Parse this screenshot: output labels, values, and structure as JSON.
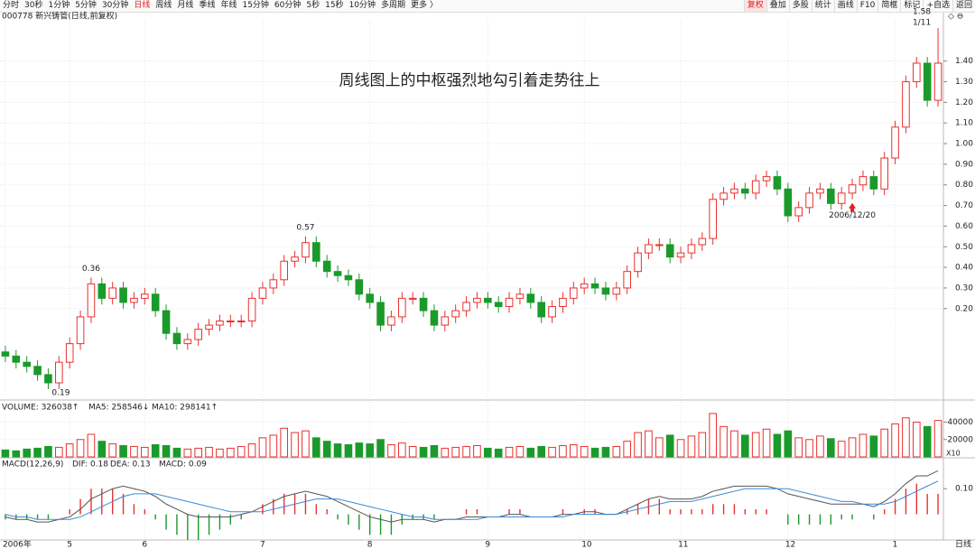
{
  "toolbar": {
    "left": [
      "分时",
      "30秒",
      "1分钟",
      "5分钟",
      "30分钟",
      "日线",
      "周线",
      "月线",
      "季线",
      "年线",
      "15分钟",
      "60分钟",
      "5秒",
      "15秒",
      "10分钟",
      "多周期",
      "更多 〉"
    ],
    "right": [
      "复权",
      "叠加",
      "多股",
      "统计",
      "画线",
      "F10",
      "简框",
      "标记",
      "+自选",
      "返回"
    ]
  },
  "stock_title": "000778 新兴铸管(日线,前复权)",
  "chart_data": [
    {
      "type": "candlestick",
      "title": "周线图上的中枢强烈地勾引着走势往上",
      "period_label": "日线",
      "categories": [
        "2006年",
        null,
        null,
        null,
        null,
        null,
        "5",
        null,
        null,
        null,
        null,
        null,
        null,
        "6",
        null,
        null,
        null,
        null,
        null,
        null,
        null,
        null,
        null,
        null,
        "7",
        null,
        null,
        null,
        null,
        null,
        null,
        null,
        null,
        null,
        "8",
        null,
        null,
        null,
        null,
        null,
        null,
        null,
        null,
        null,
        null,
        "9",
        null,
        null,
        null,
        null,
        null,
        null,
        null,
        null,
        "10",
        null,
        null,
        null,
        null,
        null,
        null,
        null,
        null,
        "11",
        null,
        null,
        null,
        null,
        null,
        null,
        null,
        null,
        null,
        "12",
        null,
        null,
        null,
        null,
        null,
        null,
        null,
        null,
        null,
        "1",
        null,
        null,
        null,
        null
      ],
      "open": [
        -0.01,
        -0.03,
        -0.06,
        -0.08,
        -0.12,
        -0.16,
        -0.06,
        0.03,
        0.16,
        0.32,
        0.25,
        0.3,
        0.23,
        0.25,
        0.27,
        0.19,
        0.08,
        0.03,
        0.05,
        0.1,
        0.12,
        0.14,
        0.14,
        0.14,
        0.25,
        0.3,
        0.34,
        0.43,
        0.45,
        0.52,
        0.43,
        0.38,
        0.36,
        0.34,
        0.27,
        0.23,
        0.12,
        0.16,
        0.25,
        0.25,
        0.19,
        0.12,
        0.16,
        0.19,
        0.23,
        0.25,
        0.23,
        0.21,
        0.25,
        0.27,
        0.23,
        0.16,
        0.21,
        0.25,
        0.3,
        0.32,
        0.3,
        0.27,
        0.3,
        0.38,
        0.47,
        0.51,
        0.51,
        0.45,
        0.47,
        0.51,
        0.54,
        0.73,
        0.76,
        0.78,
        0.76,
        0.82,
        0.84,
        0.78,
        0.65,
        0.69,
        0.76,
        0.78,
        0.71,
        0.76,
        0.8,
        0.84,
        0.78,
        0.93,
        1.08,
        1.3,
        1.39,
        1.21
      ],
      "high": [
        0.02,
        0.0,
        -0.03,
        -0.05,
        -0.09,
        -0.03,
        0.06,
        0.19,
        0.35,
        0.35,
        0.33,
        0.33,
        0.28,
        0.3,
        0.3,
        0.22,
        0.11,
        0.08,
        0.13,
        0.15,
        0.17,
        0.17,
        0.17,
        0.28,
        0.33,
        0.37,
        0.46,
        0.48,
        0.55,
        0.55,
        0.46,
        0.41,
        0.39,
        0.37,
        0.3,
        0.26,
        0.19,
        0.28,
        0.28,
        0.28,
        0.22,
        0.19,
        0.22,
        0.26,
        0.28,
        0.28,
        0.26,
        0.28,
        0.3,
        0.3,
        0.26,
        0.24,
        0.28,
        0.33,
        0.35,
        0.35,
        0.33,
        0.33,
        0.41,
        0.5,
        0.54,
        0.54,
        0.54,
        0.5,
        0.54,
        0.57,
        0.76,
        0.79,
        0.81,
        0.81,
        0.85,
        0.87,
        0.87,
        0.81,
        0.72,
        0.79,
        0.81,
        0.81,
        0.79,
        0.83,
        0.87,
        0.87,
        0.96,
        1.11,
        1.33,
        1.42,
        1.42,
        1.56
      ],
      "low": [
        -0.06,
        -0.09,
        -0.11,
        -0.15,
        -0.19,
        -0.19,
        -0.09,
        0.0,
        0.13,
        0.22,
        0.22,
        0.2,
        0.2,
        0.22,
        0.16,
        0.05,
        0.0,
        0.0,
        0.02,
        0.07,
        0.09,
        0.11,
        0.11,
        0.11,
        0.22,
        0.27,
        0.31,
        0.4,
        0.42,
        0.4,
        0.35,
        0.33,
        0.31,
        0.24,
        0.2,
        0.09,
        0.09,
        0.13,
        0.22,
        0.16,
        0.09,
        0.09,
        0.13,
        0.16,
        0.2,
        0.2,
        0.18,
        0.18,
        0.22,
        0.2,
        0.13,
        0.13,
        0.18,
        0.22,
        0.27,
        0.27,
        0.24,
        0.24,
        0.27,
        0.35,
        0.44,
        0.48,
        0.42,
        0.42,
        0.44,
        0.48,
        0.51,
        0.7,
        0.73,
        0.73,
        0.73,
        0.79,
        0.75,
        0.62,
        0.62,
        0.66,
        0.73,
        0.68,
        0.68,
        0.73,
        0.77,
        0.75,
        0.75,
        0.9,
        1.05,
        1.27,
        1.18,
        1.18
      ],
      "close": [
        -0.03,
        -0.06,
        -0.08,
        -0.12,
        -0.16,
        -0.06,
        0.03,
        0.16,
        0.32,
        0.25,
        0.3,
        0.23,
        0.25,
        0.27,
        0.19,
        0.08,
        0.03,
        0.05,
        0.1,
        0.12,
        0.14,
        0.14,
        0.14,
        0.25,
        0.3,
        0.34,
        0.43,
        0.45,
        0.52,
        0.43,
        0.38,
        0.36,
        0.34,
        0.27,
        0.23,
        0.12,
        0.16,
        0.25,
        0.25,
        0.19,
        0.12,
        0.16,
        0.19,
        0.23,
        0.25,
        0.23,
        0.21,
        0.25,
        0.27,
        0.23,
        0.16,
        0.21,
        0.25,
        0.3,
        0.32,
        0.3,
        0.27,
        0.3,
        0.38,
        0.47,
        0.51,
        0.51,
        0.45,
        0.47,
        0.51,
        0.54,
        0.73,
        0.76,
        0.78,
        0.76,
        0.82,
        0.84,
        0.78,
        0.65,
        0.69,
        0.76,
        0.78,
        0.71,
        0.76,
        0.8,
        0.84,
        0.78,
        0.93,
        1.08,
        1.3,
        1.39,
        1.21,
        1.39
      ],
      "up_color": "#e8312f",
      "down_color": "#1a9a2a",
      "ylim": [
        -0.23,
        1.6
      ],
      "yticks": [
        {
          "value": 1.4,
          "label": "1.40"
        },
        {
          "value": 1.3,
          "label": "1.30"
        },
        {
          "value": 1.2,
          "label": "1.20"
        },
        {
          "value": 1.1,
          "label": "1.10"
        },
        {
          "value": 1,
          "label": "1.00"
        },
        {
          "value": 0.9,
          "label": "0.90"
        },
        {
          "value": 0.8,
          "label": "0.80"
        },
        {
          "value": 0.7,
          "label": "0.70"
        },
        {
          "value": 0.6,
          "label": "0.60"
        },
        {
          "value": 0.5,
          "label": "0.50"
        },
        {
          "value": 0.4,
          "label": "0.40"
        },
        {
          "value": 0.3,
          "label": "0.30"
        },
        {
          "value": 0.2,
          "label": "0.20"
        }
      ],
      "annotations": [
        "0.36",
        "0.57",
        "1.58",
        "1/11",
        "0.19",
        "2006/12/20"
      ]
    },
    {
      "type": "volume",
      "legend": [
        "VOLUME: 326038↑",
        "MA5: 258546↓",
        "MA10: 298141↑"
      ],
      "unit_label": "X10",
      "values": [
        8000,
        7000,
        9000,
        10000,
        12000,
        11000,
        15000,
        20000,
        26000,
        18000,
        15000,
        13000,
        12000,
        11000,
        14000,
        13000,
        10000,
        9000,
        10000,
        11000,
        9000,
        10000,
        12000,
        15000,
        22000,
        25000,
        33000,
        28000,
        30000,
        22000,
        18000,
        15000,
        14000,
        16000,
        15000,
        20000,
        14000,
        16000,
        12000,
        11000,
        13000,
        10000,
        11000,
        12000,
        13000,
        10000,
        9000,
        11000,
        12000,
        10000,
        12000,
        11000,
        13000,
        14000,
        12000,
        10000,
        11000,
        12000,
        18000,
        28000,
        30000,
        22000,
        25000,
        20000,
        24000,
        28000,
        50000,
        35000,
        30000,
        25000,
        28000,
        32000,
        26000,
        30000,
        22000,
        20000,
        24000,
        21000,
        18000,
        22000,
        26000,
        24000,
        32000,
        38000,
        45000,
        40000,
        35000,
        42000
      ],
      "ylim": [
        0,
        52000
      ],
      "yticks": [
        40000,
        20000
      ]
    },
    {
      "type": "macd",
      "legend": [
        "MACD(12,26,9)",
        "DIF: 0.18",
        "DEA: 0.13",
        "MACD: 0.09"
      ],
      "series": [
        {
          "color": "#555555",
          "values": [
            -0.01,
            -0.02,
            -0.02,
            -0.03,
            -0.03,
            -0.02,
            -0.01,
            0.02,
            0.06,
            0.08,
            0.1,
            0.11,
            0.1,
            0.09,
            0.07,
            0.04,
            0.02,
            0.0,
            -0.01,
            -0.01,
            -0.01,
            -0.01,
            0.0,
            0.01,
            0.03,
            0.05,
            0.07,
            0.08,
            0.09,
            0.08,
            0.07,
            0.05,
            0.03,
            0.01,
            -0.01,
            -0.02,
            -0.03,
            -0.02,
            -0.02,
            -0.02,
            -0.03,
            -0.02,
            -0.02,
            -0.01,
            -0.01,
            -0.01,
            -0.01,
            0.0,
            0.0,
            -0.01,
            -0.01,
            -0.01,
            0.0,
            0.0,
            0.01,
            0.01,
            0.0,
            0.0,
            0.02,
            0.04,
            0.06,
            0.07,
            0.06,
            0.06,
            0.06,
            0.07,
            0.09,
            0.1,
            0.11,
            0.11,
            0.11,
            0.11,
            0.1,
            0.08,
            0.07,
            0.06,
            0.05,
            0.04,
            0.04,
            0.04,
            0.04,
            0.03,
            0.05,
            0.08,
            0.12,
            0.15,
            0.15,
            0.17
          ]
        },
        {
          "color": "#3a8ad8",
          "values": [
            0.0,
            -0.01,
            -0.01,
            -0.02,
            -0.02,
            -0.02,
            -0.02,
            -0.01,
            0.01,
            0.03,
            0.05,
            0.07,
            0.08,
            0.08,
            0.08,
            0.07,
            0.06,
            0.05,
            0.04,
            0.03,
            0.02,
            0.01,
            0.01,
            0.01,
            0.01,
            0.02,
            0.03,
            0.04,
            0.05,
            0.06,
            0.06,
            0.06,
            0.05,
            0.04,
            0.03,
            0.02,
            0.01,
            0.0,
            -0.01,
            -0.01,
            -0.02,
            -0.02,
            -0.02,
            -0.02,
            -0.02,
            -0.01,
            -0.01,
            -0.01,
            -0.01,
            -0.01,
            -0.01,
            -0.01,
            -0.01,
            0.0,
            0.0,
            0.0,
            0.0,
            0.0,
            0.01,
            0.02,
            0.03,
            0.04,
            0.05,
            0.05,
            0.05,
            0.06,
            0.07,
            0.08,
            0.09,
            0.1,
            0.1,
            0.1,
            0.1,
            0.1,
            0.09,
            0.08,
            0.07,
            0.06,
            0.05,
            0.05,
            0.04,
            0.04,
            0.04,
            0.05,
            0.07,
            0.09,
            0.11,
            0.13
          ]
        },
        {
          "color": "#e8312f",
          "values": [
            -0.02,
            -0.02,
            -0.02,
            -0.02,
            -0.02,
            0.0,
            0.02,
            0.06,
            0.1,
            0.1,
            0.1,
            0.08,
            0.04,
            0.02,
            -0.02,
            -0.06,
            -0.08,
            -0.1,
            -0.1,
            -0.08,
            -0.06,
            -0.04,
            -0.02,
            0.0,
            0.04,
            0.06,
            0.08,
            0.08,
            0.08,
            0.04,
            0.02,
            -0.02,
            -0.04,
            -0.06,
            -0.08,
            -0.08,
            -0.08,
            -0.04,
            -0.02,
            -0.02,
            -0.02,
            0.0,
            0.0,
            0.02,
            0.02,
            0.0,
            0.0,
            0.02,
            0.02,
            0.0,
            0.0,
            0.0,
            0.02,
            0.0,
            0.02,
            0.02,
            0.0,
            0.0,
            0.02,
            0.04,
            0.06,
            0.06,
            0.02,
            0.02,
            0.02,
            0.02,
            0.04,
            0.04,
            0.04,
            0.02,
            0.02,
            0.02,
            0.0,
            -0.04,
            -0.04,
            -0.04,
            -0.04,
            -0.04,
            -0.02,
            -0.02,
            0.0,
            -0.02,
            0.02,
            0.06,
            0.1,
            0.12,
            0.08,
            0.08
          ]
        }
      ],
      "ylim": [
        -0.1,
        0.21
      ],
      "yticks": [
        {
          "value": 0.1,
          "label": "0.10"
        }
      ]
    }
  ]
}
